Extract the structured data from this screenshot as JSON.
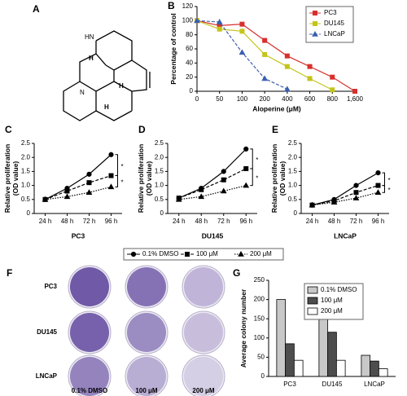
{
  "structure": {
    "panel": "A",
    "atoms": [
      "HN",
      "H",
      "N",
      "H",
      "H"
    ]
  },
  "colony_images": {
    "panel": "F",
    "rows": [
      "PC3",
      "DU145",
      "LNCaP"
    ],
    "columns": [
      "0.1% DMSO",
      "100 μM",
      "200 μM"
    ]
  },
  "chart_data": [
    {
      "type": "line",
      "panel": "B",
      "x_label": "Aloperine (μM)",
      "y_label": [
        "Percentage of control"
      ],
      "categories": [
        "0",
        "50",
        "100",
        "200",
        "400",
        "600",
        "800",
        "1,600"
      ],
      "ylim": [
        0,
        120
      ],
      "yticks": [
        0,
        20,
        40,
        60,
        80,
        100,
        120
      ],
      "legend": "top-right",
      "category_layout": "edge",
      "series": [
        {
          "name": "PC3",
          "color": "#d7302c",
          "marker": "square",
          "line_style": "solid",
          "values": [
            100,
            93,
            95,
            72,
            50,
            35,
            20,
            0
          ]
        },
        {
          "name": "DU145",
          "color": "#c4c41c",
          "marker": "square",
          "line_style": "solid",
          "values": [
            100,
            88,
            85,
            52,
            35,
            18,
            2,
            null
          ]
        },
        {
          "name": "LNCaP",
          "color": "#3a5fb0",
          "marker": "triangle",
          "line_style": "dashed",
          "values": [
            100,
            98,
            55,
            18,
            3,
            null,
            null,
            null
          ]
        }
      ]
    },
    {
      "type": "line",
      "panel": "C",
      "x_label": "PC3",
      "y_label": [
        "Relative proliferation",
        "(OD value)"
      ],
      "categories": [
        "24 h",
        "48 h",
        "72 h",
        "96 h"
      ],
      "category_layout": "band",
      "ylim": [
        0,
        2.5
      ],
      "yticks": [
        0,
        0.5,
        {
          "value": 1,
          "label": "1.0"
        },
        1.5,
        {
          "value": 2,
          "label": "2.0"
        },
        2.5
      ],
      "annotations": [
        "*",
        "*"
      ],
      "legend": "bottom",
      "series": [
        {
          "name": "0.1% DMSO",
          "color": "#000000",
          "marker": "circle",
          "line_style": "solid",
          "values": [
            0.5,
            0.9,
            1.4,
            2.1
          ]
        },
        {
          "name": "100 μM",
          "color": "#000000",
          "marker": "square",
          "line_style": "dashed",
          "values": [
            0.5,
            0.8,
            1.1,
            1.35
          ]
        },
        {
          "name": "200 μM",
          "color": "#000000",
          "marker": "triangle",
          "line_style": "dotted",
          "values": [
            0.5,
            0.6,
            0.75,
            0.95
          ]
        }
      ]
    },
    {
      "type": "line",
      "panel": "D",
      "x_label": "DU145",
      "y_label": [
        "Relative proliferation",
        "(OD value)"
      ],
      "categories": [
        "24 h",
        "48 h",
        "72 h",
        "96 h"
      ],
      "category_layout": "band",
      "ylim": [
        0,
        2.5
      ],
      "yticks": [
        0,
        0.5,
        {
          "value": 1,
          "label": "1.0"
        },
        1.5,
        {
          "value": 2,
          "label": "2.0"
        },
        2.5
      ],
      "annotations": [
        "*",
        "*"
      ],
      "series": [
        {
          "name": "0.1% DMSO",
          "color": "#000000",
          "marker": "circle",
          "line_style": "solid",
          "values": [
            0.55,
            0.9,
            1.5,
            2.3
          ]
        },
        {
          "name": "100 μM",
          "color": "#000000",
          "marker": "square",
          "line_style": "dashed",
          "values": [
            0.55,
            0.85,
            1.2,
            1.6
          ]
        },
        {
          "name": "200 μM",
          "color": "#000000",
          "marker": "triangle",
          "line_style": "dotted",
          "values": [
            0.5,
            0.6,
            0.8,
            1.0
          ]
        }
      ]
    },
    {
      "type": "line",
      "panel": "E",
      "x_label": "LNCaP",
      "y_label": [
        "Relative proliferation",
        "(OD value)"
      ],
      "categories": [
        "24 h",
        "48 h",
        "72 h",
        "96 h"
      ],
      "category_layout": "band",
      "ylim": [
        0,
        2.5
      ],
      "yticks": [
        0,
        0.5,
        {
          "value": 1,
          "label": "1.0"
        },
        1.5,
        {
          "value": 2,
          "label": "2.0"
        },
        2.5
      ],
      "annotations": [
        "*",
        "*"
      ],
      "series": [
        {
          "name": "0.1% DMSO",
          "color": "#000000",
          "marker": "circle",
          "line_style": "solid",
          "values": [
            0.3,
            0.5,
            1.0,
            1.45
          ]
        },
        {
          "name": "100 μM",
          "color": "#000000",
          "marker": "square",
          "line_style": "dashed",
          "values": [
            0.3,
            0.45,
            0.75,
            1.0
          ]
        },
        {
          "name": "200 μM",
          "color": "#000000",
          "marker": "triangle",
          "line_style": "dotted",
          "values": [
            0.3,
            0.4,
            0.55,
            0.75
          ]
        }
      ]
    },
    {
      "type": "bar",
      "panel": "G",
      "y_label": [
        "Average colony number"
      ],
      "categories": [
        "PC3",
        "DU145",
        "LNCaP"
      ],
      "ylim": [
        0,
        250
      ],
      "yticks": [
        0,
        50,
        100,
        150,
        200,
        250
      ],
      "legend": "top-right",
      "series": [
        {
          "name": "0.1% DMSO",
          "color": "#c8c8c8",
          "values": [
            200,
            165,
            55
          ]
        },
        {
          "name": "100 μM",
          "color": "#4d4d4d",
          "values": [
            85,
            115,
            40
          ]
        },
        {
          "name": "200 μM",
          "color": "#ffffff",
          "values": [
            42,
            42,
            20
          ]
        }
      ]
    }
  ]
}
